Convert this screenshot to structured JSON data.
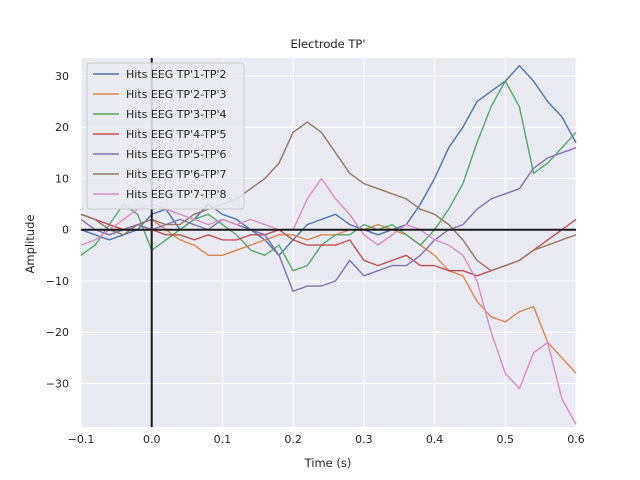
{
  "chart_data": {
    "type": "line",
    "title": "Electrode TP'",
    "xlabel": "Time (s)",
    "ylabel": "Amplitude",
    "xlim": [
      -0.1,
      0.6
    ],
    "ylim": [
      -38.5,
      33.5
    ],
    "xticks": [
      -0.1,
      0.0,
      0.1,
      0.2,
      0.3,
      0.4,
      0.5,
      0.6
    ],
    "xtick_labels": [
      "−0.1",
      "0.0",
      "0.1",
      "0.2",
      "0.3",
      "0.4",
      "0.5",
      "0.6"
    ],
    "yticks": [
      30,
      20,
      10,
      0,
      -10,
      -20,
      -30
    ],
    "ytick_labels": [
      "30",
      "20",
      "10",
      "0",
      "−10",
      "−20",
      "−30"
    ],
    "grid": true,
    "legend_position": "top-left",
    "reference_lines": {
      "x": 0.0,
      "y": 0
    },
    "series": [
      {
        "name": "Hits EEG TP'1-TP'2",
        "color": "#4c72b0",
        "x": [
          -0.1,
          -0.08,
          -0.06,
          -0.04,
          -0.02,
          0.0,
          0.02,
          0.04,
          0.06,
          0.08,
          0.1,
          0.12,
          0.14,
          0.16,
          0.18,
          0.2,
          0.22,
          0.24,
          0.26,
          0.28,
          0.3,
          0.32,
          0.34,
          0.36,
          0.38,
          0.4,
          0.42,
          0.44,
          0.46,
          0.48,
          0.5,
          0.52,
          0.54,
          0.56,
          0.58,
          0.6
        ],
        "y": [
          0,
          -1,
          -2,
          -1,
          0,
          3,
          4,
          0,
          2,
          5,
          3,
          2,
          0,
          -2,
          -5,
          -2,
          1,
          2,
          3,
          1,
          0,
          -1,
          0,
          1,
          5,
          10,
          16,
          20,
          25,
          27,
          29,
          32,
          29,
          25,
          22,
          17
        ]
      },
      {
        "name": "Hits EEG TP'2-TP'3",
        "color": "#dd8452",
        "x": [
          -0.1,
          -0.08,
          -0.06,
          -0.04,
          -0.02,
          0.0,
          0.02,
          0.04,
          0.06,
          0.08,
          0.1,
          0.12,
          0.14,
          0.16,
          0.18,
          0.2,
          0.22,
          0.24,
          0.26,
          0.28,
          0.3,
          0.32,
          0.34,
          0.36,
          0.38,
          0.4,
          0.42,
          0.44,
          0.46,
          0.48,
          0.5,
          0.52,
          0.54,
          0.56,
          0.58,
          0.6
        ],
        "y": [
          3,
          2,
          1,
          0,
          1,
          2,
          0,
          -2,
          -3,
          -5,
          -5,
          -4,
          -3,
          -2,
          -1,
          -1,
          -2,
          -1,
          -1,
          0,
          0,
          1,
          0,
          -1,
          -3,
          -5,
          -8,
          -9,
          -14,
          -17,
          -18,
          -16,
          -15,
          -22,
          -25,
          -28
        ]
      },
      {
        "name": "Hits EEG TP'3-TP'4",
        "color": "#55a868",
        "x": [
          -0.1,
          -0.08,
          -0.06,
          -0.04,
          -0.02,
          0.0,
          0.02,
          0.04,
          0.06,
          0.08,
          0.1,
          0.12,
          0.14,
          0.16,
          0.18,
          0.2,
          0.22,
          0.24,
          0.26,
          0.28,
          0.3,
          0.32,
          0.34,
          0.36,
          0.38,
          0.4,
          0.42,
          0.44,
          0.46,
          0.48,
          0.5,
          0.52,
          0.54,
          0.56,
          0.58,
          0.6
        ],
        "y": [
          -5,
          -3,
          1,
          5,
          3,
          -4,
          -2,
          0,
          2,
          3,
          1,
          -1,
          -4,
          -5,
          -3,
          -8,
          -7,
          -3,
          -1,
          -1,
          1,
          0,
          1,
          -1,
          -3,
          0,
          4,
          9,
          17,
          24,
          29,
          24,
          11,
          13,
          16,
          19
        ]
      },
      {
        "name": "Hits EEG TP'4-TP'5",
        "color": "#c44e52",
        "x": [
          -0.1,
          -0.08,
          -0.06,
          -0.04,
          -0.02,
          0.0,
          0.02,
          0.04,
          0.06,
          0.08,
          0.1,
          0.12,
          0.14,
          0.16,
          0.18,
          0.2,
          0.22,
          0.24,
          0.26,
          0.28,
          0.3,
          0.32,
          0.34,
          0.36,
          0.38,
          0.4,
          0.42,
          0.44,
          0.46,
          0.48,
          0.5,
          0.52,
          0.54,
          0.56,
          0.58,
          0.6
        ],
        "y": [
          3,
          2,
          1,
          0,
          1,
          0,
          -1,
          -1,
          -2,
          -1,
          -2,
          -2,
          -1,
          -1,
          0,
          -2,
          -3,
          -3,
          -3,
          -2,
          -6,
          -7,
          -6,
          -5,
          -7,
          -7,
          -8,
          -8,
          -9,
          -8,
          -7,
          -6,
          -4,
          -2,
          0,
          2
        ]
      },
      {
        "name": "Hits EEG TP'5-TP'6",
        "color": "#8172b3",
        "x": [
          -0.1,
          -0.08,
          -0.06,
          -0.04,
          -0.02,
          0.0,
          0.02,
          0.04,
          0.06,
          0.08,
          0.1,
          0.12,
          0.14,
          0.16,
          0.18,
          0.2,
          0.22,
          0.24,
          0.26,
          0.28,
          0.3,
          0.32,
          0.34,
          0.36,
          0.38,
          0.4,
          0.42,
          0.44,
          0.46,
          0.48,
          0.5,
          0.52,
          0.54,
          0.56,
          0.58,
          0.6
        ],
        "y": [
          2,
          0,
          -1,
          0,
          1,
          0,
          1,
          2,
          1,
          0,
          2,
          1,
          0,
          -1,
          -5,
          -12,
          -11,
          -11,
          -10,
          -6,
          -9,
          -8,
          -7,
          -7,
          -5,
          -2,
          0,
          1,
          4,
          6,
          7,
          8,
          12,
          14,
          15,
          16
        ]
      },
      {
        "name": "Hits EEG TP'6-TP'7",
        "color": "#937860",
        "x": [
          -0.1,
          -0.08,
          -0.06,
          -0.04,
          -0.02,
          0.0,
          0.02,
          0.04,
          0.06,
          0.08,
          0.1,
          0.12,
          0.14,
          0.16,
          0.18,
          0.2,
          0.22,
          0.24,
          0.26,
          0.28,
          0.3,
          0.32,
          0.34,
          0.36,
          0.38,
          0.4,
          0.42,
          0.44,
          0.46,
          0.48,
          0.5,
          0.52,
          0.54,
          0.56,
          0.58,
          0.6
        ],
        "y": [
          3,
          2,
          0,
          -1,
          1,
          2,
          1,
          1,
          3,
          4,
          5,
          6,
          8,
          10,
          13,
          19,
          21,
          19,
          15,
          11,
          9,
          8,
          7,
          6,
          4,
          3,
          1,
          -2,
          -6,
          -8,
          -7,
          -6,
          -4,
          -3,
          -2,
          -1
        ]
      },
      {
        "name": "Hits EEG TP'7-TP'8",
        "color": "#da8bc3",
        "x": [
          -0.1,
          -0.08,
          -0.06,
          -0.04,
          -0.02,
          0.0,
          0.02,
          0.04,
          0.06,
          0.08,
          0.1,
          0.12,
          0.14,
          0.16,
          0.18,
          0.2,
          0.22,
          0.24,
          0.26,
          0.28,
          0.3,
          0.32,
          0.34,
          0.36,
          0.38,
          0.4,
          0.42,
          0.44,
          0.46,
          0.48,
          0.5,
          0.52,
          0.54,
          0.56,
          0.58,
          0.6
        ],
        "y": [
          -3,
          -2,
          0,
          2,
          4,
          5,
          4,
          3,
          2,
          1,
          2,
          1,
          2,
          1,
          0,
          0,
          6,
          10,
          6,
          3,
          -1,
          -3,
          -1,
          1,
          0,
          -2,
          -3,
          -5,
          -10,
          -20,
          -28,
          -31,
          -24,
          -22,
          -33,
          -38
        ]
      }
    ]
  }
}
